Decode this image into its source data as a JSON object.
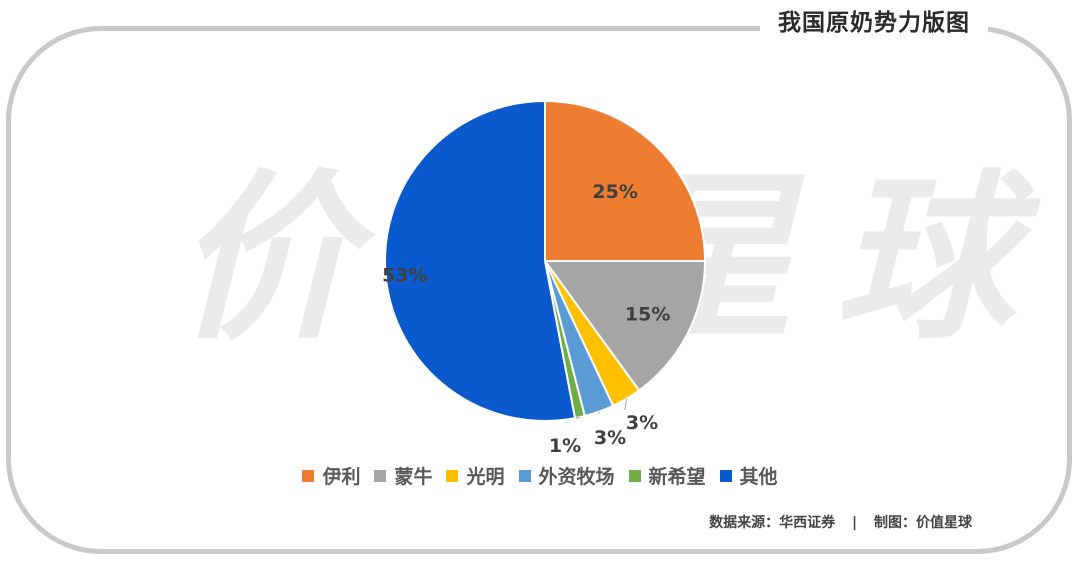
{
  "title": "我国原奶势力版图",
  "watermark": "价值星球",
  "source": {
    "left": "数据来源：华西证券",
    "separator": "|",
    "right": "制图：价值星球"
  },
  "chart_data": {
    "type": "pie",
    "title": "我国原奶势力版图",
    "slices": [
      {
        "name": "伊利",
        "value": 25,
        "label": "25%",
        "color": "#ED7D31"
      },
      {
        "name": "蒙牛",
        "value": 15,
        "label": "15%",
        "color": "#A5A5A5"
      },
      {
        "name": "光明",
        "value": 3,
        "label": "3%",
        "color": "#FFC000"
      },
      {
        "name": "外资牧场",
        "value": 3,
        "label": "3%",
        "color": "#5B9BD5"
      },
      {
        "name": "新希望",
        "value": 1,
        "label": "1%",
        "color": "#70AD47"
      },
      {
        "name": "其他",
        "value": 53,
        "label": "53%",
        "color": "#0B5ACD"
      }
    ],
    "legend_position": "bottom",
    "start_angle": "12 o'clock",
    "direction": "clockwise"
  }
}
